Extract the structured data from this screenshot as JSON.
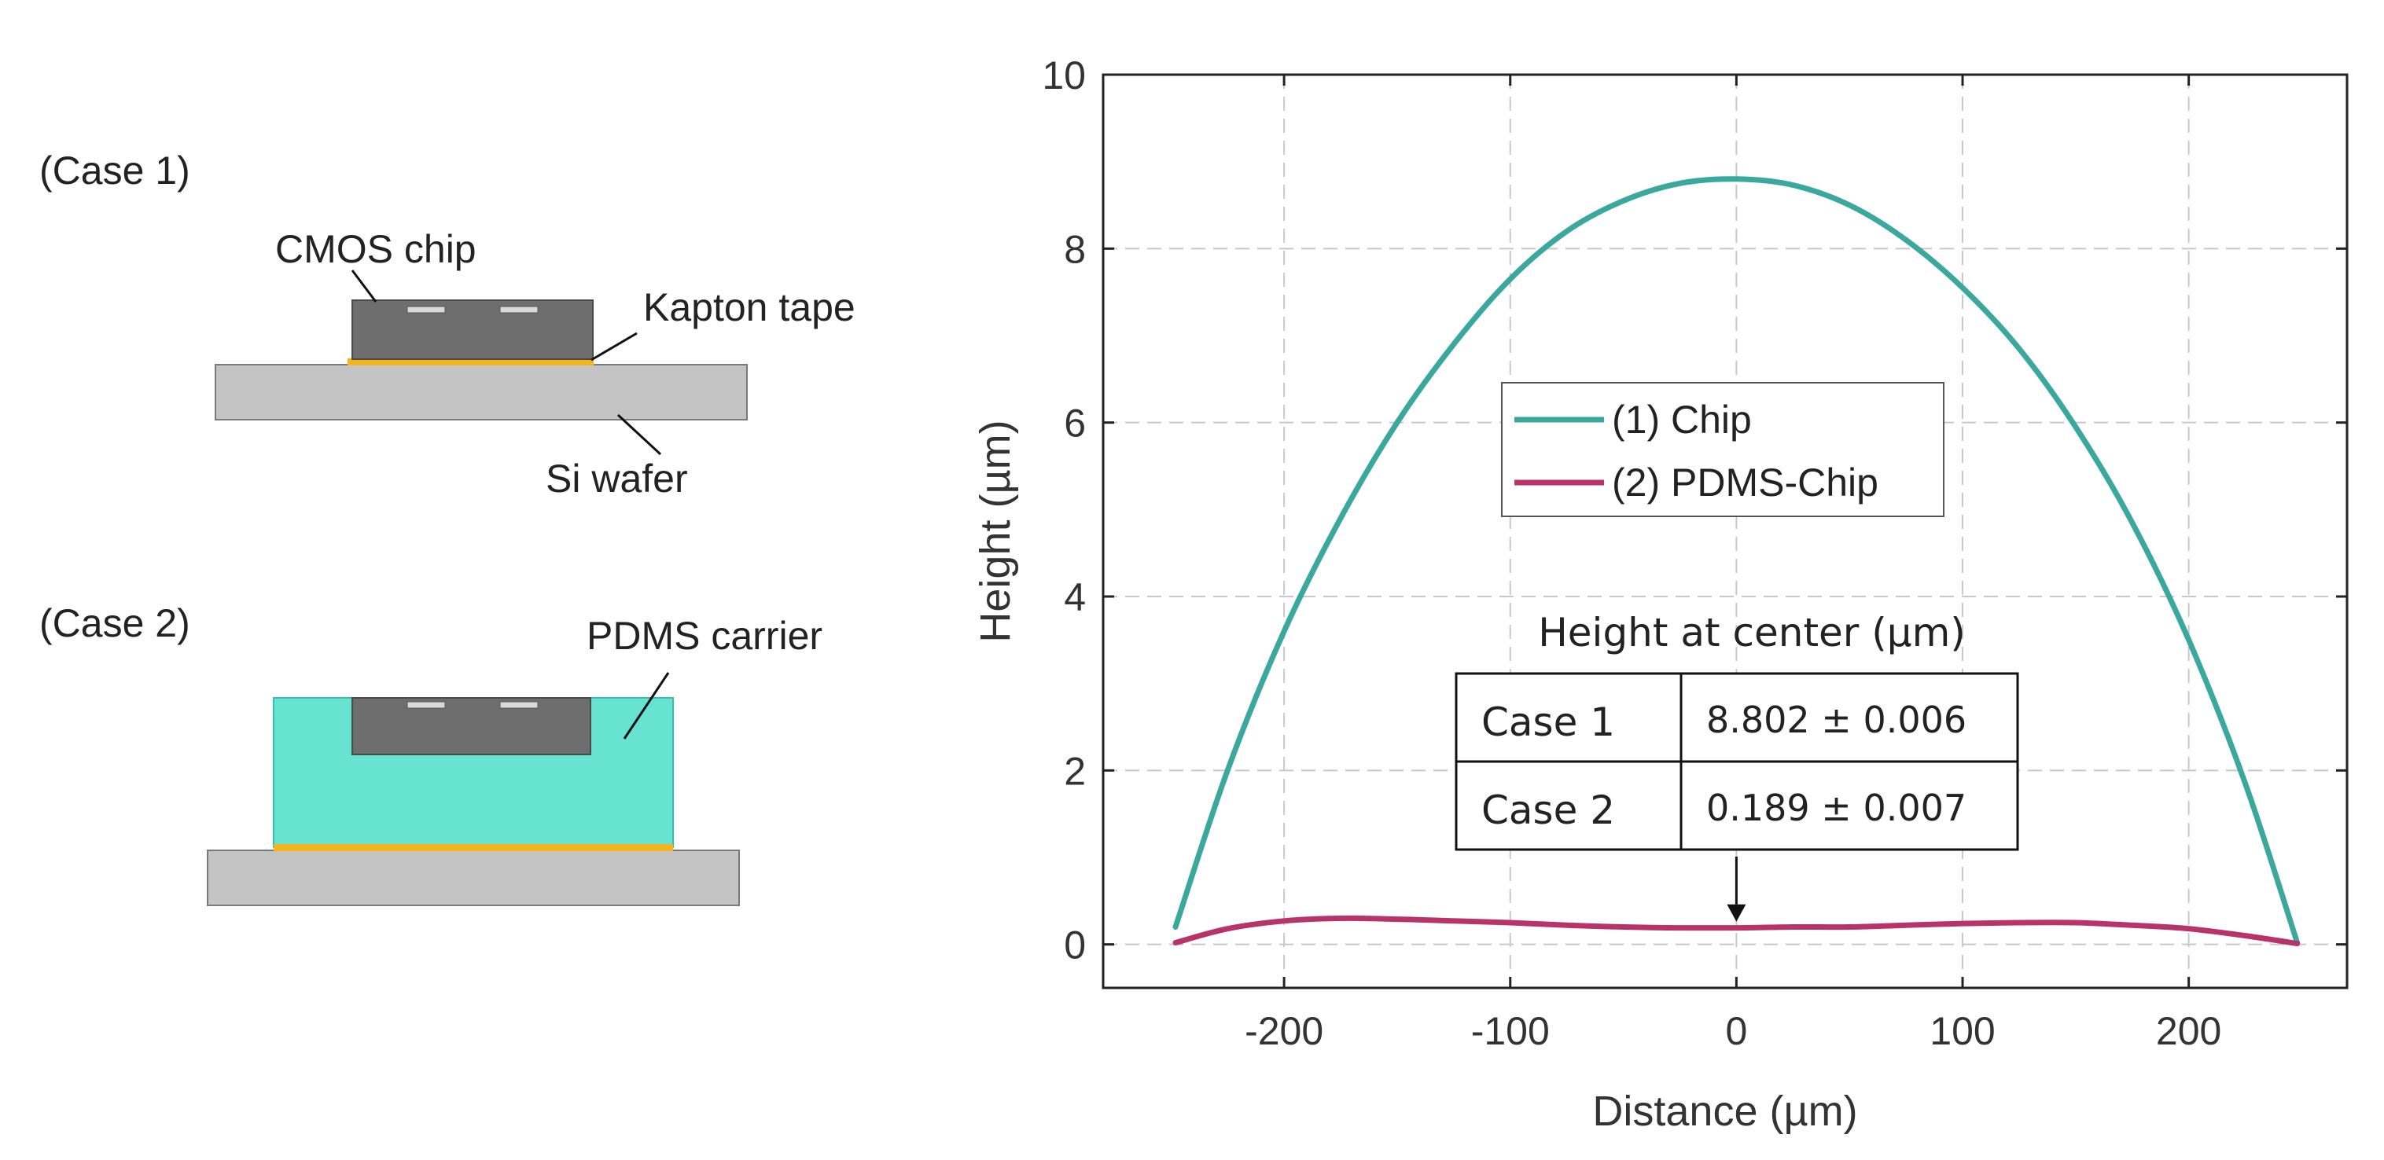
{
  "schematic": {
    "case1": {
      "title": "(Case 1)",
      "chip_label": "CMOS chip",
      "tape_label": "Kapton tape",
      "wafer_label": "Si wafer"
    },
    "case2": {
      "title": "(Case 2)",
      "carrier_label": "PDMS carrier"
    },
    "colors": {
      "chip": "#6e6e6e",
      "wafer": "#c4c4c4",
      "tape": "#f3b41e",
      "pdms": "#66e3d1",
      "pad": "#d9d9d9"
    }
  },
  "chart_data": {
    "type": "line",
    "xlabel": "Distance (µm)",
    "ylabel": "Height (µm)",
    "xlim": [
      -280,
      270
    ],
    "ylim": [
      -0.5,
      10
    ],
    "xticks": [
      -200,
      -100,
      0,
      100,
      200
    ],
    "yticks": [
      0,
      2,
      4,
      6,
      8,
      10
    ],
    "xtick_labels": [
      "-200",
      "-100",
      "0",
      "100",
      "200"
    ],
    "ytick_labels": [
      "0",
      "2",
      "4",
      "6",
      "8",
      "10"
    ],
    "grid": true,
    "legend_position": "upper-middle",
    "series": [
      {
        "name": "(1) Chip",
        "color": "#3aa89c",
        "x": [
          -248,
          -225,
          -200,
          -175,
          -150,
          -125,
          -100,
          -75,
          -50,
          -25,
          0,
          25,
          50,
          75,
          100,
          125,
          150,
          175,
          200,
          225,
          248
        ],
        "y": [
          0.2,
          2.0,
          3.6,
          4.9,
          6.0,
          6.9,
          7.65,
          8.2,
          8.55,
          8.75,
          8.8,
          8.73,
          8.5,
          8.1,
          7.55,
          6.85,
          5.95,
          4.85,
          3.5,
          1.85,
          0.02
        ]
      },
      {
        "name": "(2) PDMS-Chip",
        "color": "#b8336a",
        "x": [
          -248,
          -225,
          -200,
          -175,
          -150,
          -125,
          -100,
          -75,
          -50,
          -25,
          0,
          25,
          50,
          75,
          100,
          125,
          150,
          175,
          200,
          225,
          248
        ],
        "y": [
          0.02,
          0.18,
          0.27,
          0.3,
          0.29,
          0.27,
          0.25,
          0.22,
          0.2,
          0.19,
          0.19,
          0.2,
          0.2,
          0.22,
          0.24,
          0.25,
          0.25,
          0.22,
          0.18,
          0.1,
          0.01
        ]
      }
    ],
    "annotation": {
      "table_title": "Height at center (µm)",
      "rows": [
        {
          "case": "Case 1",
          "value": "8.802 ± 0.006"
        },
        {
          "case": "Case 2",
          "value": "0.189 ± 0.007"
        }
      ],
      "arrow_target_x": 0,
      "arrow_target_y": 0.189
    }
  }
}
